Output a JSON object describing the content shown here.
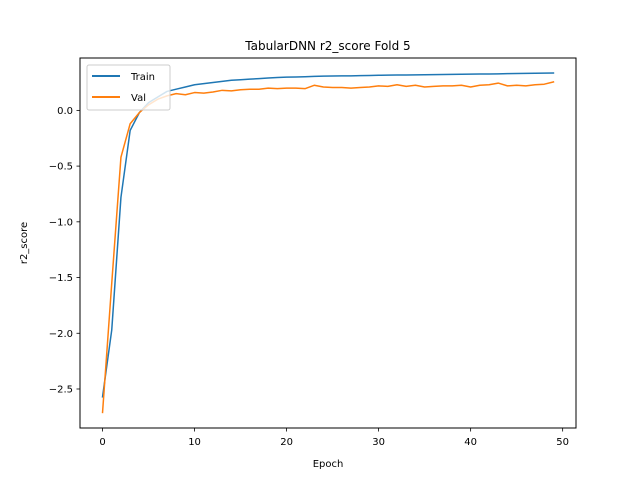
{
  "chart_data": {
    "type": "line",
    "title": "TabularDNN r2_score Fold 5",
    "xlabel": "Epoch",
    "ylabel": "r2_score",
    "xlim": [
      -2.45,
      51.45
    ],
    "ylim": [
      -2.85,
      0.47
    ],
    "xticks": [
      0,
      10,
      20,
      30,
      40,
      50
    ],
    "xtick_labels": [
      "0",
      "10",
      "20",
      "30",
      "40",
      "50"
    ],
    "yticks": [
      -2.5,
      -2.0,
      -1.5,
      -1.0,
      -0.5,
      0.0
    ],
    "ytick_labels": [
      "−2.5",
      "−2.0",
      "−1.5",
      "−1.0",
      "−0.5",
      "0.0"
    ],
    "grid": false,
    "legend_position": "upper-left",
    "x": [
      0,
      1,
      2,
      3,
      4,
      5,
      6,
      7,
      8,
      9,
      10,
      11,
      12,
      13,
      14,
      15,
      16,
      17,
      18,
      19,
      20,
      21,
      22,
      23,
      24,
      25,
      26,
      27,
      28,
      29,
      30,
      31,
      32,
      33,
      34,
      35,
      36,
      37,
      38,
      39,
      40,
      41,
      42,
      43,
      44,
      45,
      46,
      47,
      48,
      49
    ],
    "series": [
      {
        "name": "Train",
        "color": "#1f77b4",
        "values": [
          -2.57,
          -1.97,
          -0.78,
          -0.18,
          -0.02,
          0.07,
          0.12,
          0.17,
          0.19,
          0.21,
          0.23,
          0.24,
          0.25,
          0.26,
          0.27,
          0.275,
          0.28,
          0.285,
          0.29,
          0.295,
          0.298,
          0.3,
          0.302,
          0.305,
          0.307,
          0.308,
          0.31,
          0.31,
          0.312,
          0.313,
          0.315,
          0.316,
          0.317,
          0.318,
          0.319,
          0.32,
          0.321,
          0.322,
          0.323,
          0.324,
          0.325,
          0.326,
          0.327,
          0.328,
          0.33,
          0.331,
          0.332,
          0.333,
          0.334,
          0.335
        ]
      },
      {
        "name": "Val",
        "color": "#ff7f0e",
        "values": [
          -2.71,
          -1.55,
          -0.42,
          -0.12,
          -0.02,
          0.05,
          0.1,
          0.13,
          0.15,
          0.14,
          0.16,
          0.155,
          0.165,
          0.18,
          0.175,
          0.185,
          0.19,
          0.19,
          0.2,
          0.195,
          0.2,
          0.2,
          0.195,
          0.225,
          0.21,
          0.205,
          0.205,
          0.2,
          0.205,
          0.21,
          0.22,
          0.215,
          0.23,
          0.215,
          0.225,
          0.21,
          0.215,
          0.22,
          0.22,
          0.225,
          0.21,
          0.225,
          0.23,
          0.245,
          0.22,
          0.225,
          0.22,
          0.23,
          0.235,
          0.255
        ]
      }
    ]
  }
}
